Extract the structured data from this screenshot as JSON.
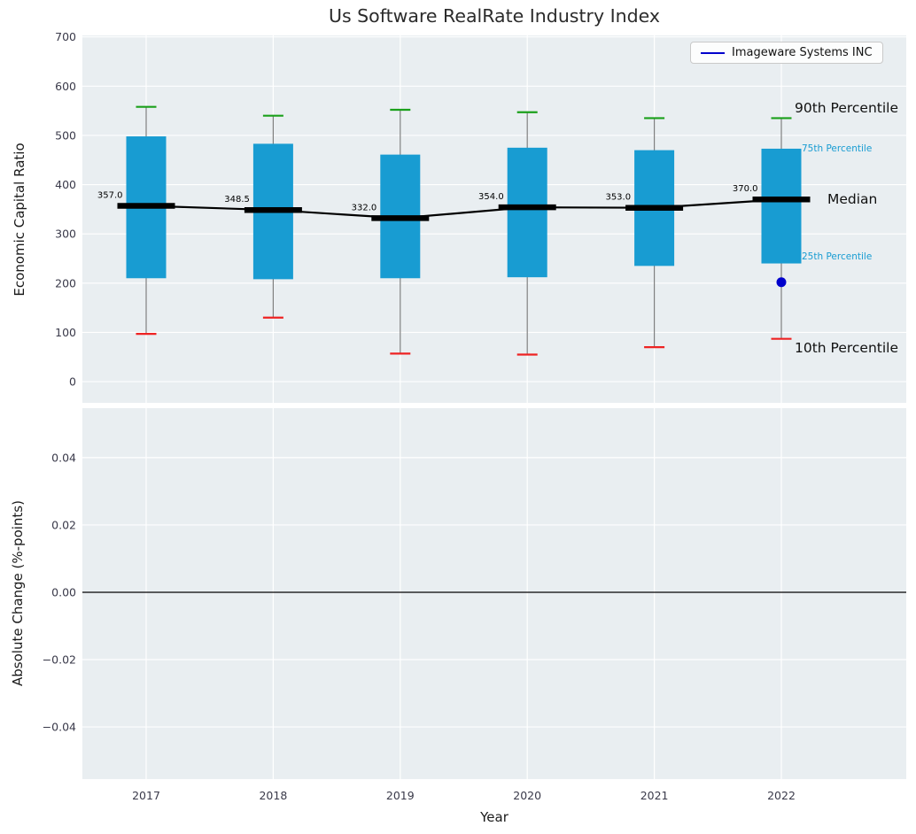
{
  "figure": {
    "title": "Us Software RealRate Industry Index",
    "xlabel": "Year",
    "legend_label": "Imageware Systems INC"
  },
  "top_plot": {
    "ylabel": "Economic Capital Ratio",
    "ylim": [
      -43,
      703
    ],
    "yticks": [
      0,
      100,
      200,
      300,
      400,
      500,
      600,
      700
    ],
    "annotations": {
      "p90": "90th Percentile",
      "p75": "75th Percentile",
      "median": "Median",
      "p25": "25th Percentile",
      "p10": "10th Percentile"
    }
  },
  "bottom_plot": {
    "ylabel": "Absolute Change (%-points)",
    "ylim": [
      -0.0555,
      0.0547
    ],
    "yticks": [
      -0.04,
      -0.02,
      0.0,
      0.02,
      0.04
    ],
    "zero_line": 0.0
  },
  "chart_data": {
    "type": "boxplot",
    "title": "Us Software RealRate Industry Index",
    "xlabel": "Year",
    "ylabel": "Economic Capital Ratio",
    "legend_position": "upper right",
    "grid": true,
    "categories": [
      "2017",
      "2018",
      "2019",
      "2020",
      "2021",
      "2022"
    ],
    "series": [
      {
        "year": "2017",
        "p10": 97,
        "p25": 210,
        "median": 357.0,
        "p75": 498,
        "p90": 558,
        "median_label": "357.0"
      },
      {
        "year": "2018",
        "p10": 130,
        "p25": 208,
        "median": 348.5,
        "p75": 483,
        "p90": 540,
        "median_label": "348.5"
      },
      {
        "year": "2019",
        "p10": 57,
        "p25": 210,
        "median": 332.0,
        "p75": 461,
        "p90": 552,
        "median_label": "332.0"
      },
      {
        "year": "2020",
        "p10": 55,
        "p25": 212,
        "median": 354.0,
        "p75": 475,
        "p90": 547,
        "median_label": "354.0"
      },
      {
        "year": "2021",
        "p10": 70,
        "p25": 235,
        "median": 353.0,
        "p75": 470,
        "p90": 535,
        "median_label": "353.0"
      },
      {
        "year": "2022",
        "p10": 87,
        "p25": 240,
        "median": 370.0,
        "p75": 473,
        "p90": 535,
        "median_label": "370.0"
      }
    ],
    "company_series": {
      "name": "Imageware Systems INC",
      "points": [
        {
          "year": "2022",
          "value": 202
        }
      ]
    },
    "colors": {
      "box": "#189cd2",
      "whisker": "#7f7f7f",
      "cap_top": "#1aa01a",
      "cap_bottom": "#ee2222",
      "median": "#000000",
      "company": "#0000cc",
      "plot_bg": "#e9eef1",
      "grid": "#ffffff",
      "tick_label": "#3a3a4a",
      "percentile_label": "#189cd2"
    }
  }
}
